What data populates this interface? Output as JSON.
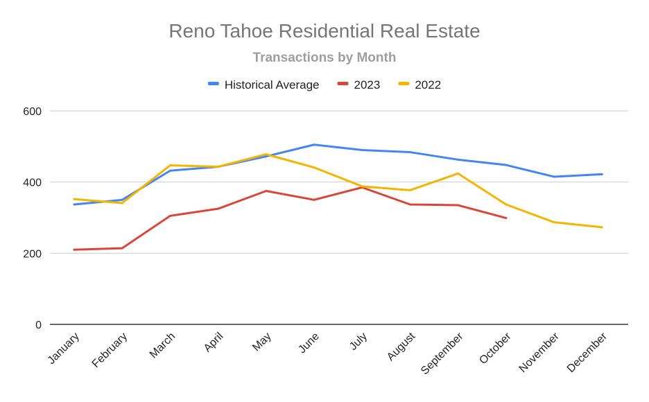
{
  "chart_data": {
    "type": "line",
    "title": "Reno Tahoe Residential Real Estate",
    "subtitle": "Transactions by Month",
    "xlabel": "",
    "ylabel": "",
    "ylim": [
      0,
      600
    ],
    "yticks": [
      0,
      200,
      400,
      600
    ],
    "ytick_labels": [
      "0",
      "200",
      "400",
      "600"
    ],
    "grid": true,
    "legend_position": "top",
    "categories": [
      "January",
      "February",
      "March",
      "April",
      "May",
      "June",
      "July",
      "August",
      "September",
      "October",
      "November",
      "December"
    ],
    "series": [
      {
        "name": "Historical Average",
        "color": "#4285f4",
        "values": [
          337,
          350,
          432,
          443,
          472,
          505,
          490,
          484,
          463,
          448,
          415,
          422
        ]
      },
      {
        "name": "2023",
        "color": "#db4437",
        "values": [
          210,
          214,
          305,
          325,
          375,
          350,
          385,
          337,
          335,
          299,
          null,
          null
        ]
      },
      {
        "name": "2022",
        "color": "#f4b400",
        "values": [
          352,
          341,
          447,
          443,
          478,
          441,
          388,
          377,
          424,
          337,
          287,
          273
        ]
      }
    ]
  }
}
